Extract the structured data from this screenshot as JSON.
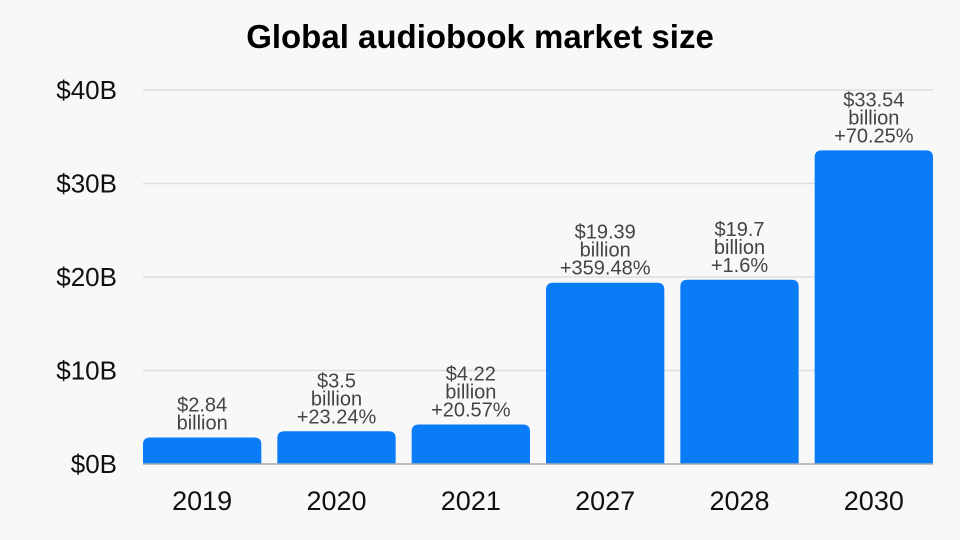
{
  "chart_data": {
    "type": "bar",
    "title": "Global audiobook market size",
    "categories": [
      "2019",
      "2020",
      "2021",
      "2027",
      "2028",
      "2030"
    ],
    "values": [
      2.84,
      3.5,
      4.22,
      19.39,
      19.7,
      33.54
    ],
    "data_labels": [
      [
        "$2.84",
        "billion"
      ],
      [
        "$3.5",
        "billion",
        "+23.24%"
      ],
      [
        "$4.22",
        "billion",
        "+20.57%"
      ],
      [
        "$19.39",
        "billion",
        "+359.48%"
      ],
      [
        "$19.7",
        "billion",
        "+1.6%"
      ],
      [
        "$33.54",
        "billion",
        "+70.25%"
      ]
    ],
    "yticks": [
      0,
      10,
      20,
      30,
      40
    ],
    "ytick_labels": [
      "$0B",
      "$10B",
      "$20B",
      "$30B",
      "$40B"
    ],
    "ylim": [
      0,
      40
    ],
    "xlabel": "",
    "ylabel": "",
    "grid": true,
    "colors": {
      "bar": "#0a7cf8",
      "grid": "#dddddd",
      "label": "#444444"
    }
  }
}
